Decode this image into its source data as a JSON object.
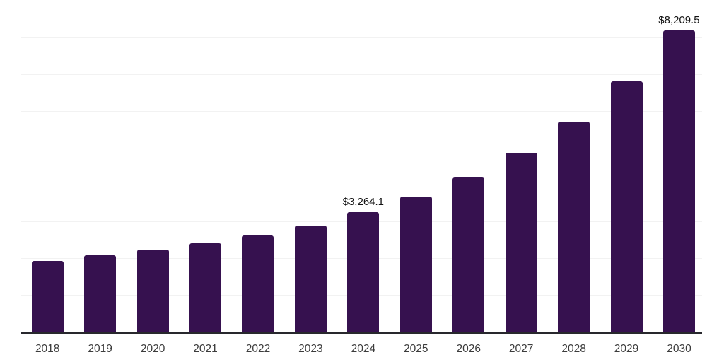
{
  "chart_data": {
    "type": "bar",
    "title": "",
    "xlabel": "",
    "ylabel": "",
    "categories": [
      "2018",
      "2019",
      "2020",
      "2021",
      "2022",
      "2023",
      "2024",
      "2025",
      "2026",
      "2027",
      "2028",
      "2029",
      "2030"
    ],
    "values": [
      1950,
      2090,
      2245,
      2430,
      2632,
      2900,
      3264.1,
      3683,
      4203,
      4880,
      5738,
      6826,
      8209.5
    ],
    "data_labels": [
      {
        "category": "2024",
        "text": "$3,264.1"
      },
      {
        "category": "2030",
        "text": "$8,209.5"
      }
    ],
    "ylim": [
      0,
      9000
    ],
    "gridline_interval": 1000,
    "grid": "horizontal",
    "legend_position": "none",
    "y_axis_labels_visible": false,
    "colors": {
      "bar": "#36114F",
      "axis_line": "#28282d",
      "gridline": "#f2f2f2",
      "tick_label": "#3c3c3c",
      "data_label": "#141414",
      "background": "#ffffff"
    }
  }
}
